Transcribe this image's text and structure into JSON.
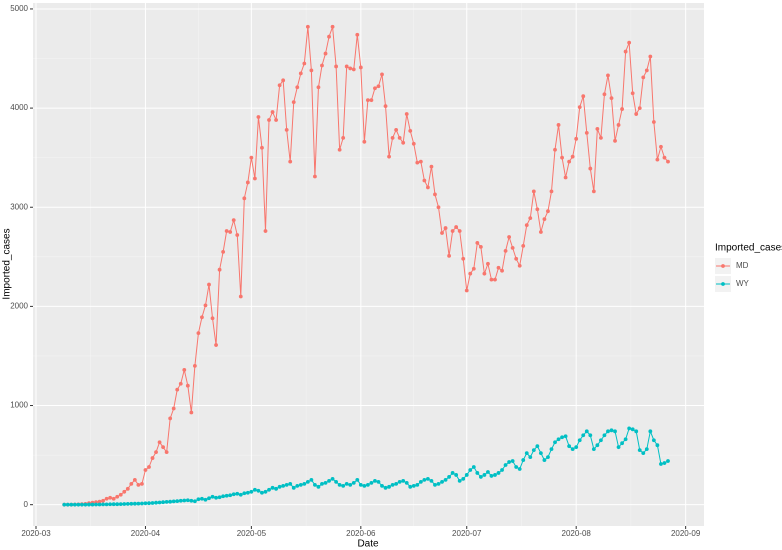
{
  "chart_data": {
    "type": "line",
    "x_label": "Date",
    "y_label": "Imported_cases",
    "legend_title": "Imported_cases",
    "legend_position": "right",
    "x": [
      69,
      70,
      71,
      72,
      73,
      74,
      75,
      76,
      77,
      78,
      79,
      80,
      81,
      82,
      83,
      84,
      85,
      86,
      87,
      88,
      89,
      90,
      91,
      92,
      93,
      94,
      95,
      96,
      97,
      98,
      99,
      100,
      101,
      102,
      103,
      104,
      105,
      106,
      107,
      108,
      109,
      110,
      111,
      112,
      113,
      114,
      115,
      116,
      117,
      118,
      119,
      120,
      121,
      122,
      123,
      124,
      125,
      126,
      127,
      128,
      129,
      130,
      131,
      132,
      133,
      134,
      135,
      136,
      137,
      138,
      139,
      140,
      141,
      142,
      143,
      144,
      145,
      146,
      147,
      148,
      149,
      150,
      151,
      152,
      153,
      154,
      155,
      156,
      157,
      158,
      159,
      160,
      161,
      162,
      163,
      164,
      165,
      166,
      167,
      168,
      169,
      170,
      171,
      172,
      173,
      174,
      175,
      176,
      177,
      178,
      179,
      180,
      181,
      182,
      183,
      184,
      185,
      186,
      187,
      188,
      189,
      190,
      191,
      192,
      193,
      194,
      195,
      196,
      197,
      198,
      199,
      200,
      201,
      202,
      203,
      204,
      205,
      206,
      207,
      208,
      209,
      210,
      211,
      212,
      213,
      214,
      215,
      216,
      217,
      218,
      219,
      220,
      221,
      222,
      223,
      224,
      225,
      226,
      227,
      228,
      229,
      230,
      231,
      232,
      233,
      234,
      235,
      236,
      237,
      238,
      239,
      240
    ],
    "series": [
      {
        "name": "MD",
        "color": "#F8766D",
        "values": [
          0,
          0,
          0,
          2,
          3,
          5,
          8,
          15,
          20,
          25,
          30,
          40,
          60,
          70,
          60,
          80,
          100,
          130,
          160,
          210,
          250,
          200,
          210,
          350,
          380,
          470,
          530,
          630,
          580,
          530,
          870,
          970,
          1160,
          1220,
          1360,
          1200,
          930,
          1400,
          1730,
          1890,
          2010,
          2220,
          1880,
          1610,
          2370,
          2550,
          2760,
          2750,
          2870,
          2720,
          2100,
          3090,
          3250,
          3500,
          3290,
          3910,
          3600,
          2760,
          3880,
          3960,
          3880,
          4230,
          4280,
          3780,
          3460,
          4060,
          4210,
          4350,
          4450,
          4820,
          4380,
          3310,
          4210,
          4430,
          4550,
          4720,
          4820,
          4420,
          3580,
          3700,
          4420,
          4400,
          4390,
          4740,
          4410,
          3660,
          4080,
          4080,
          4200,
          4220,
          4340,
          4020,
          3510,
          3700,
          3780,
          3700,
          3650,
          3940,
          3770,
          3640,
          3450,
          3460,
          3270,
          3200,
          3410,
          3130,
          3000,
          2740,
          2790,
          2510,
          2760,
          2800,
          2760,
          2480,
          2160,
          2330,
          2380,
          2640,
          2600,
          2330,
          2430,
          2270,
          2270,
          2390,
          2360,
          2560,
          2700,
          2590,
          2480,
          2410,
          2610,
          2820,
          2890,
          3160,
          2980,
          2750,
          2880,
          2960,
          3160,
          3580,
          3830,
          3500,
          3300,
          3460,
          3510,
          3690,
          4010,
          4120,
          3750,
          3390,
          3160,
          3790,
          3700,
          4140,
          4330,
          4100,
          3670,
          3830,
          3990,
          4570,
          4660,
          4150,
          3940,
          4000,
          4310,
          4380,
          4520,
          3860,
          3480,
          3610,
          3500,
          3460
        ]
      },
      {
        "name": "WY",
        "color": "#00BFC4",
        "values": [
          0,
          0,
          0,
          0,
          0,
          0,
          0,
          1,
          1,
          2,
          2,
          3,
          3,
          4,
          5,
          5,
          6,
          7,
          8,
          9,
          10,
          11,
          12,
          14,
          15,
          17,
          20,
          22,
          25,
          28,
          30,
          33,
          36,
          40,
          42,
          45,
          40,
          35,
          55,
          60,
          50,
          65,
          80,
          70,
          75,
          85,
          90,
          95,
          105,
          110,
          100,
          115,
          120,
          130,
          150,
          140,
          120,
          130,
          150,
          170,
          160,
          180,
          190,
          200,
          210,
          170,
          190,
          200,
          210,
          230,
          250,
          200,
          180,
          210,
          220,
          240,
          260,
          230,
          200,
          190,
          210,
          200,
          220,
          250,
          200,
          190,
          200,
          220,
          240,
          230,
          190,
          170,
          180,
          200,
          210,
          230,
          240,
          220,
          180,
          190,
          200,
          230,
          250,
          260,
          240,
          200,
          210,
          230,
          250,
          280,
          320,
          300,
          240,
          260,
          300,
          350,
          380,
          320,
          280,
          300,
          330,
          290,
          300,
          320,
          350,
          400,
          430,
          440,
          380,
          360,
          450,
          520,
          480,
          550,
          590,
          520,
          450,
          480,
          560,
          630,
          660,
          680,
          690,
          590,
          560,
          580,
          650,
          700,
          740,
          700,
          560,
          600,
          650,
          700,
          740,
          750,
          740,
          580,
          620,
          660,
          770,
          760,
          740,
          550,
          520,
          560,
          740,
          650,
          600,
          410,
          420,
          440
        ]
      }
    ],
    "xlim": [
      60.15,
      250.2
    ],
    "xticks": [
      {
        "value": 61,
        "label": "2020-03"
      },
      {
        "value": 92,
        "label": "2020-04"
      },
      {
        "value": 122,
        "label": "2020-05"
      },
      {
        "value": 153,
        "label": "2020-06"
      },
      {
        "value": 183,
        "label": "2020-07"
      },
      {
        "value": 214,
        "label": "2020-08"
      },
      {
        "value": 245,
        "label": "2020-09"
      }
    ],
    "ylim": [
      -215,
      5060
    ],
    "yticks": [
      0,
      1000,
      2000,
      3000,
      4000,
      5000
    ],
    "grid": true
  }
}
